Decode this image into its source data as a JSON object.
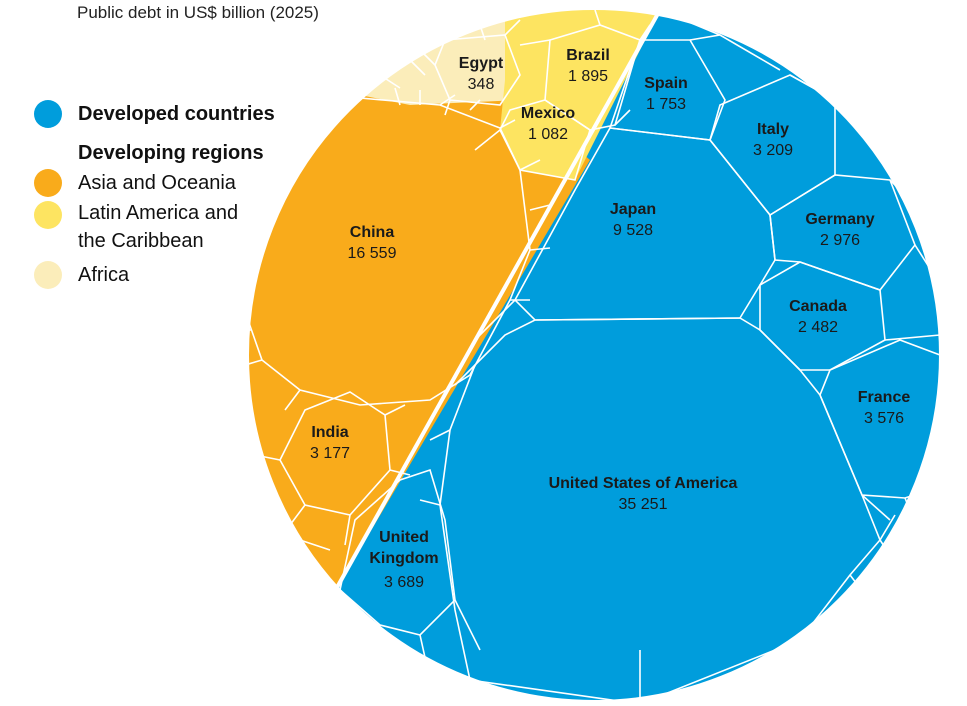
{
  "chart_data": {
    "type": "voronoi-treemap",
    "subtitle": "Public debt in US$ billion (2025)",
    "unit": "US$ billion",
    "year": 2025,
    "colors": {
      "developed": "#009ddc",
      "asia_oceania": "#f9ab1b",
      "latin_america": "#fde461",
      "africa": "#fbedba",
      "border": "#ffffff"
    },
    "legend": {
      "developed": "Developed countries",
      "developing_header": "Developing regions",
      "asia_oceania": "Asia and Oceania",
      "latin_america_line1": "Latin America and",
      "latin_america_line2": "the Caribbean",
      "africa": "Africa"
    },
    "countries": [
      {
        "name": "United States of America",
        "value": 35251,
        "display": "35 251",
        "group": "developed"
      },
      {
        "name": "China",
        "value": 16559,
        "display": "16 559",
        "group": "asia_oceania"
      },
      {
        "name": "Japan",
        "value": 9528,
        "display": "9 528",
        "group": "developed"
      },
      {
        "name": "United",
        "name2": "Kingdom",
        "value": 3689,
        "display": "3 689",
        "group": "developed"
      },
      {
        "name": "France",
        "value": 3576,
        "display": "3 576",
        "group": "developed"
      },
      {
        "name": "Italy",
        "value": 3209,
        "display": "3 209",
        "group": "developed"
      },
      {
        "name": "India",
        "value": 3177,
        "display": "3 177",
        "group": "asia_oceania"
      },
      {
        "name": "Germany",
        "value": 2976,
        "display": "2 976",
        "group": "developed"
      },
      {
        "name": "Canada",
        "value": 2482,
        "display": "2 482",
        "group": "developed"
      },
      {
        "name": "Brazil",
        "value": 1895,
        "display": "1 895",
        "group": "latin_america"
      },
      {
        "name": "Spain",
        "value": 1753,
        "display": "1 753",
        "group": "developed"
      },
      {
        "name": "Mexico",
        "value": 1082,
        "display": "1 082",
        "group": "latin_america"
      },
      {
        "name": "Egypt",
        "value": 348,
        "display": "348",
        "group": "africa"
      }
    ]
  }
}
